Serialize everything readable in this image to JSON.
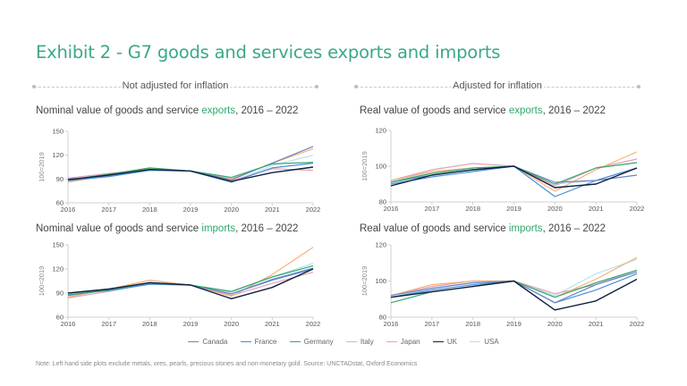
{
  "title": "Exhibit 2 - G7 goods and services exports and imports",
  "sections": [
    {
      "label": "Not adjusted for inflation"
    },
    {
      "label": "Adjusted for inflation"
    }
  ],
  "legend": [
    {
      "name": "Canada",
      "color": "#6a84c6"
    },
    {
      "name": "France",
      "color": "#4a90d9"
    },
    {
      "name": "Germany",
      "color": "#2eaa6a"
    },
    {
      "name": "Italy",
      "color": "#f4b27a"
    },
    {
      "name": "Japan",
      "color": "#e8a0b4"
    },
    {
      "name": "UK",
      "color": "#0f2040"
    },
    {
      "name": "USA",
      "color": "#b8e0f0"
    }
  ],
  "note": "Note: Left hand side plots exclude metals, ores, pearls, precious stones and non-monetary gold. Source: UNCTADstat, Oxford Economics",
  "chart_data": [
    {
      "type": "line",
      "title_prefix": "Nominal value of goods and service ",
      "title_highlight": "exports",
      "title_suffix": ", 2016 – 2022",
      "ylabel": "100=2019",
      "xlabel": "",
      "ylim": [
        60,
        150
      ],
      "yticks": [
        60,
        90,
        120,
        150
      ],
      "x": [
        "2016",
        "2017",
        "2018",
        "2019",
        "2020",
        "2021",
        "2022"
      ],
      "series": [
        {
          "name": "Canada",
          "values": [
            90,
            94,
            102,
            100,
            89,
            110,
            131
          ]
        },
        {
          "name": "France",
          "values": [
            88,
            93,
            101,
            100,
            86,
            104,
            110
          ]
        },
        {
          "name": "Germany",
          "values": [
            89,
            96,
            104,
            100,
            92,
            109,
            111
          ]
        },
        {
          "name": "Italy",
          "values": [
            86,
            95,
            103,
            100,
            90,
            110,
            128
          ]
        },
        {
          "name": "Japan",
          "values": [
            91,
            97,
            102,
            100,
            88,
            103,
            101
          ]
        },
        {
          "name": "UK",
          "values": [
            89,
            95,
            102,
            100,
            87,
            98,
            105
          ]
        },
        {
          "name": "USA",
          "values": [
            88,
            94,
            102,
            100,
            86,
            107,
            120
          ]
        }
      ]
    },
    {
      "type": "line",
      "title_prefix": "Real value of goods and service ",
      "title_highlight": "exports",
      "title_suffix": ", 2016 – 2022",
      "ylabel": "100=2019",
      "xlabel": "",
      "ylim": [
        80,
        120
      ],
      "yticks": [
        80,
        100,
        120
      ],
      "x": [
        "2016",
        "2017",
        "2018",
        "2019",
        "2020",
        "2021",
        "2022"
      ],
      "series": [
        {
          "name": "Canada",
          "values": [
            91,
            95,
            98,
            100,
            91,
            92,
            95
          ]
        },
        {
          "name": "France",
          "values": [
            90,
            94,
            97,
            100,
            83,
            92,
            99
          ]
        },
        {
          "name": "Germany",
          "values": [
            91,
            96,
            99,
            100,
            90,
            99,
            102
          ]
        },
        {
          "name": "Italy",
          "values": [
            92,
            97,
            99,
            100,
            86,
            98,
            108
          ]
        },
        {
          "name": "Japan",
          "values": [
            92,
            98,
            101.5,
            100,
            89,
            99,
            104
          ]
        },
        {
          "name": "UK",
          "values": [
            89,
            95,
            98,
            100,
            88,
            90,
            99
          ]
        },
        {
          "name": "USA",
          "values": [
            92,
            96,
            98,
            100,
            90,
            92,
            99
          ]
        }
      ]
    },
    {
      "type": "line",
      "title_prefix": "Nominal value of goods and service ",
      "title_highlight": "imports",
      "title_suffix": ", 2016 – 2022",
      "ylabel": "100=2019",
      "xlabel": "",
      "ylim": [
        60,
        150
      ],
      "yticks": [
        60,
        90,
        120,
        150
      ],
      "x": [
        "2016",
        "2017",
        "2018",
        "2019",
        "2020",
        "2021",
        "2022"
      ],
      "series": [
        {
          "name": "Canada",
          "values": [
            90,
            94,
            102,
            100,
            89,
            107,
            121
          ]
        },
        {
          "name": "France",
          "values": [
            88,
            93,
            101,
            100,
            89,
            106,
            120
          ]
        },
        {
          "name": "Germany",
          "values": [
            87,
            94,
            103,
            100,
            92,
            110,
            124
          ]
        },
        {
          "name": "Italy",
          "values": [
            85,
            95,
            106,
            100,
            86,
            113,
            147
          ]
        },
        {
          "name": "Japan",
          "values": [
            84,
            92,
            102,
            100,
            87,
            102,
            116
          ]
        },
        {
          "name": "UK",
          "values": [
            90,
            95,
            103,
            100,
            83,
            97,
            120
          ]
        },
        {
          "name": "USA",
          "values": [
            88,
            94,
            101,
            100,
            91,
            110,
            127
          ]
        }
      ]
    },
    {
      "type": "line",
      "title_prefix": "Real value of goods and service ",
      "title_highlight": "imports",
      "title_suffix": ", 2016 – 2022",
      "ylabel": "100=2019",
      "xlabel": "",
      "ylim": [
        80,
        120
      ],
      "yticks": [
        80,
        100,
        120
      ],
      "x": [
        "2016",
        "2017",
        "2018",
        "2019",
        "2020",
        "2021",
        "2022"
      ],
      "series": [
        {
          "name": "Canada",
          "values": [
            92,
            96,
            99,
            100,
            88,
            98,
            105
          ]
        },
        {
          "name": "France",
          "values": [
            91,
            95,
            98,
            100,
            88,
            95,
            104
          ]
        },
        {
          "name": "Germany",
          "values": [
            88,
            94,
            97,
            100,
            91,
            99,
            106
          ]
        },
        {
          "name": "Italy",
          "values": [
            92,
            98,
            100,
            100,
            91,
            101,
            113
          ]
        },
        {
          "name": "Japan",
          "values": [
            92,
            97,
            100,
            100,
            93,
            98,
            106
          ]
        },
        {
          "name": "UK",
          "values": [
            91,
            94,
            97,
            100,
            84,
            89,
            101
          ]
        },
        {
          "name": "USA",
          "values": [
            91,
            96,
            99,
            100,
            92,
            104,
            112
          ]
        }
      ]
    }
  ]
}
